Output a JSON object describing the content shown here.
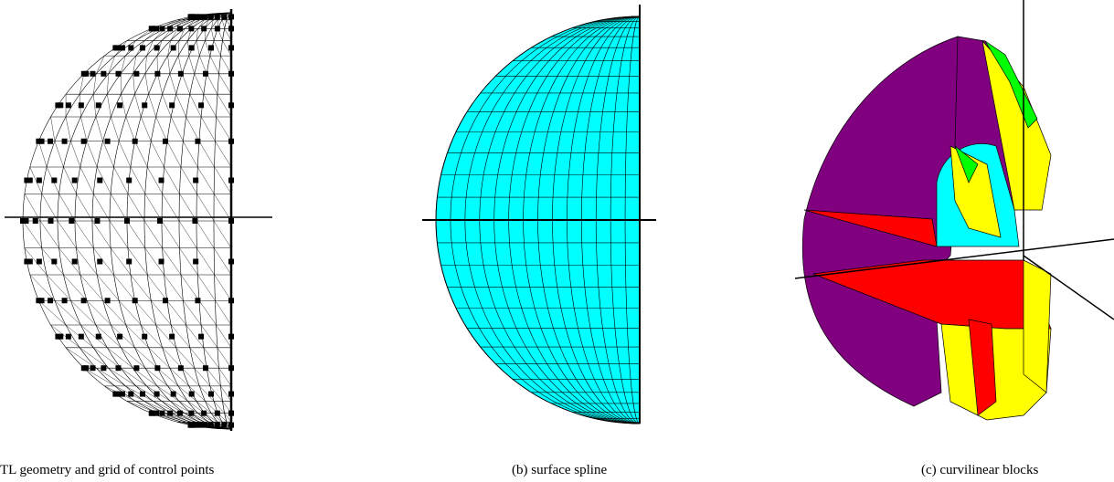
{
  "captions": [
    "TL geometry and grid of control points",
    "(b) surface spline",
    "(c) curvilinear blocks"
  ]
}
